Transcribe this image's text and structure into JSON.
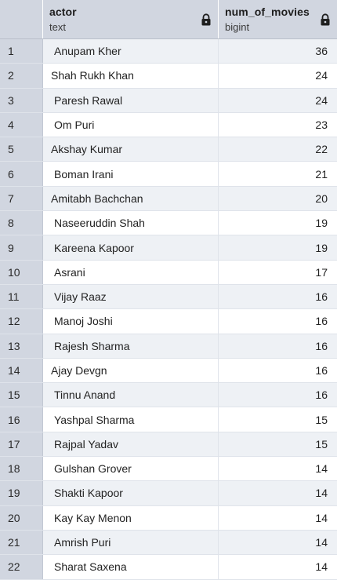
{
  "columns": [
    {
      "name": "actor",
      "type": "text",
      "icon": "lock-icon"
    },
    {
      "name": "num_of_movies",
      "type": "bigint",
      "icon": "lock-icon"
    }
  ],
  "rows": [
    {
      "n": "1",
      "actor": "Anupam Kher",
      "movies": "36"
    },
    {
      "n": "2",
      "actor": "Shah Rukh Khan",
      "movies": "24"
    },
    {
      "n": "3",
      "actor": "Paresh Rawal",
      "movies": "24"
    },
    {
      "n": "4",
      "actor": "Om Puri",
      "movies": "23"
    },
    {
      "n": "5",
      "actor": "Akshay Kumar",
      "movies": "22"
    },
    {
      "n": "6",
      "actor": "Boman Irani",
      "movies": "21"
    },
    {
      "n": "7",
      "actor": "Amitabh Bachchan",
      "movies": "20"
    },
    {
      "n": "8",
      "actor": "Naseeruddin Shah",
      "movies": "19"
    },
    {
      "n": "9",
      "actor": "Kareena Kapoor",
      "movies": "19"
    },
    {
      "n": "10",
      "actor": "Asrani",
      "movies": "17"
    },
    {
      "n": "11",
      "actor": "Vijay Raaz",
      "movies": "16"
    },
    {
      "n": "12",
      "actor": "Manoj Joshi",
      "movies": "16"
    },
    {
      "n": "13",
      "actor": "Rajesh Sharma",
      "movies": "16"
    },
    {
      "n": "14",
      "actor": "Ajay Devgn",
      "movies": "16"
    },
    {
      "n": "15",
      "actor": "Tinnu Anand",
      "movies": "16"
    },
    {
      "n": "16",
      "actor": "Yashpal Sharma",
      "movies": "15"
    },
    {
      "n": "17",
      "actor": "Rajpal Yadav",
      "movies": "15"
    },
    {
      "n": "18",
      "actor": "Gulshan Grover",
      "movies": "14"
    },
    {
      "n": "19",
      "actor": "Shakti Kapoor",
      "movies": "14"
    },
    {
      "n": "20",
      "actor": "Kay Kay Menon",
      "movies": "14"
    },
    {
      "n": "21",
      "actor": "Amrish Puri",
      "movies": "14"
    },
    {
      "n": "22",
      "actor": "Sharat Saxena",
      "movies": "14"
    }
  ]
}
